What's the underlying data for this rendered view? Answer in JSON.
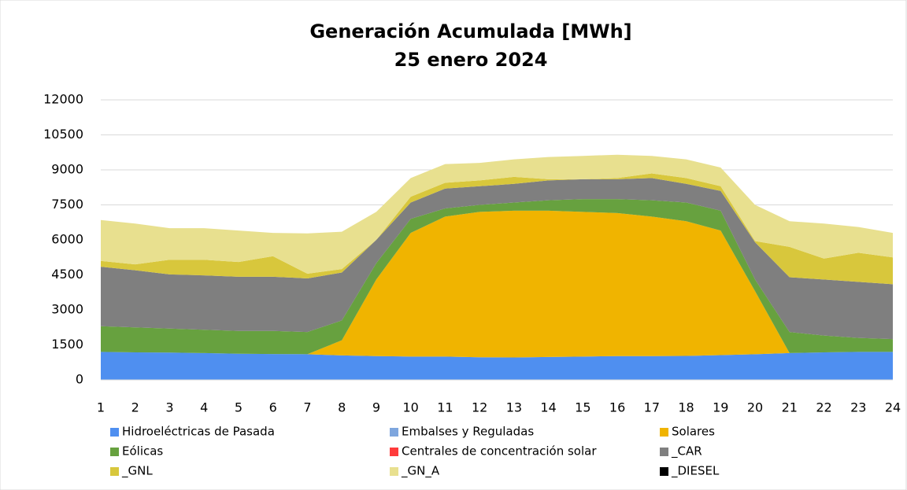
{
  "chart_data": {
    "type": "stacked_area",
    "title": "Generación Acumulada [MWh]",
    "subtitle": "25 enero 2024",
    "x": [
      1,
      2,
      3,
      4,
      5,
      6,
      7,
      8,
      9,
      10,
      11,
      12,
      13,
      14,
      15,
      16,
      17,
      18,
      19,
      20,
      21,
      22,
      23,
      24
    ],
    "xlim": [
      1,
      24
    ],
    "xticks": [
      1,
      2,
      3,
      4,
      5,
      6,
      7,
      8,
      9,
      10,
      11,
      12,
      13,
      14,
      15,
      16,
      17,
      18,
      19,
      20,
      21,
      22,
      23,
      24
    ],
    "ylim": [
      0,
      12000
    ],
    "yticks": [
      0,
      1500,
      3000,
      4500,
      6000,
      7500,
      9000,
      10500,
      12000
    ],
    "grid": true,
    "legend": "bottom",
    "series": [
      {
        "name": "Hidroeléctricas de Pasada",
        "color": "#4f8ff0",
        "values": [
          1200,
          1180,
          1170,
          1150,
          1120,
          1110,
          1100,
          1050,
          1020,
          1000,
          1000,
          970,
          960,
          980,
          1000,
          1020,
          1020,
          1030,
          1060,
          1100,
          1150,
          1180,
          1200,
          1200
        ]
      },
      {
        "name": "Embalses y Reguladas",
        "color": "#7ea6de",
        "values": [
          0,
          0,
          0,
          0,
          0,
          0,
          0,
          0,
          0,
          0,
          0,
          0,
          0,
          0,
          0,
          0,
          0,
          0,
          0,
          0,
          0,
          0,
          0,
          0
        ]
      },
      {
        "name": "Solares",
        "color": "#f0b400",
        "values": [
          0,
          0,
          0,
          0,
          0,
          0,
          0,
          650,
          3280,
          5300,
          6000,
          6230,
          6290,
          6270,
          6200,
          6130,
          5980,
          5770,
          5340,
          2700,
          0,
          0,
          0,
          0
        ]
      },
      {
        "name": "Eólicas",
        "color": "#67a13f",
        "values": [
          1100,
          1070,
          1030,
          1000,
          980,
          990,
          950,
          850,
          700,
          600,
          350,
          300,
          350,
          450,
          550,
          600,
          700,
          800,
          850,
          500,
          900,
          720,
          600,
          550
        ]
      },
      {
        "name": "Centrales de concentración solar",
        "color": "#ff3b3b",
        "values": [
          0,
          0,
          0,
          0,
          0,
          0,
          0,
          0,
          0,
          0,
          0,
          0,
          0,
          0,
          0,
          0,
          0,
          0,
          0,
          0,
          0,
          0,
          0,
          0
        ]
      },
      {
        "name": "_CAR",
        "color": "#7f7f7f",
        "values": [
          2550,
          2450,
          2320,
          2330,
          2320,
          2320,
          2300,
          2050,
          1000,
          700,
          850,
          800,
          800,
          850,
          850,
          850,
          950,
          800,
          850,
          1600,
          2350,
          2400,
          2400,
          2350
        ]
      },
      {
        "name": "_GNL",
        "color": "#d8c73c",
        "values": [
          250,
          250,
          630,
          670,
          630,
          880,
          200,
          150,
          0,
          250,
          250,
          250,
          300,
          50,
          0,
          50,
          200,
          250,
          200,
          50,
          1300,
          900,
          1250,
          1150
        ]
      },
      {
        "name": "_GN_A",
        "color": "#e8e08f",
        "values": [
          1750,
          1750,
          1350,
          1350,
          1350,
          1000,
          1730,
          1600,
          1200,
          800,
          800,
          750,
          750,
          950,
          1000,
          1000,
          750,
          800,
          800,
          1550,
          1100,
          1500,
          1100,
          1050
        ]
      },
      {
        "name": "_DIESEL",
        "color": "#000000",
        "values": [
          0,
          0,
          0,
          0,
          0,
          0,
          0,
          0,
          0,
          0,
          0,
          0,
          0,
          0,
          0,
          0,
          0,
          0,
          0,
          0,
          0,
          0,
          0,
          0
        ]
      }
    ]
  }
}
